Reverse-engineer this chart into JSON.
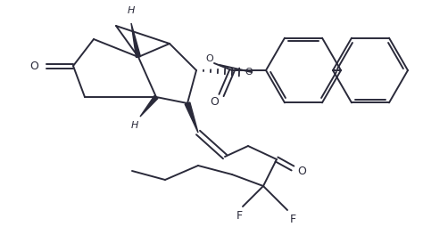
{
  "background_color": "#ffffff",
  "line_color": "#2a2a3a",
  "line_width": 1.4,
  "figsize": [
    4.74,
    2.64
  ],
  "dpi": 100,
  "xlim": [
    0,
    474
  ],
  "ylim": [
    0,
    264
  ]
}
